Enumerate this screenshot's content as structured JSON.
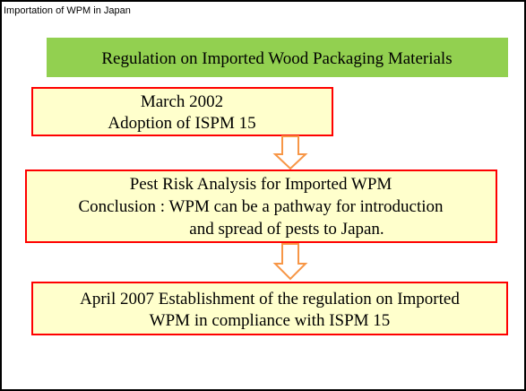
{
  "header": {
    "title": "Importation of WPM in Japan"
  },
  "heading": "Regulation on Imported Wood Packaging Materials",
  "nodes": [
    {
      "lines": [
        "March 2002",
        "Adoption of ISPM 15"
      ]
    },
    {
      "lines": [
        "Pest Risk Analysis for Imported WPM",
        "Conclusion : WPM can be a pathway for introduction",
        "and spread of pests to Japan."
      ]
    },
    {
      "lines": [
        "April 2007 Establishment of the regulation on Imported",
        "WPM in compliance with ISPM 15"
      ]
    }
  ]
}
